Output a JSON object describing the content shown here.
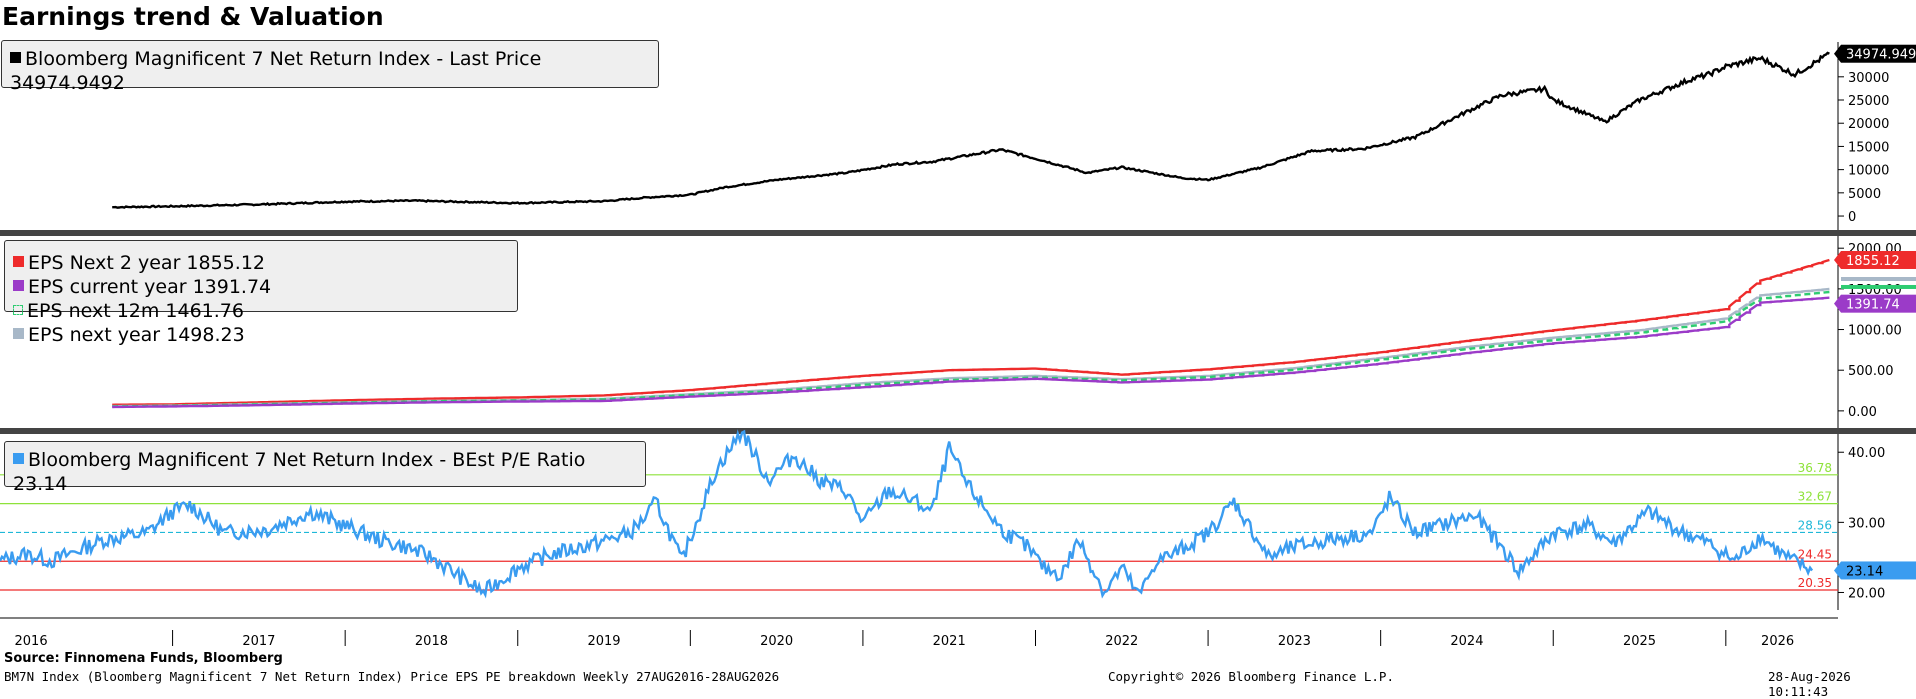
{
  "page": {
    "title": "Earnings trend & Valuation",
    "source": "Source: Finnomena Funds, Bloomberg",
    "footer_left": "BM7N Index (Bloomberg Magnificent 7 Net Return Index) Price EPS PE breakdown Weekly 27AUG2016-28AUG2026",
    "footer_center": "Copyright© 2026 Bloomberg Finance L.P.",
    "footer_right": "28-Aug-2026 10:11:43"
  },
  "colors": {
    "price": "#000000",
    "eps_2y": "#ee2b2b",
    "eps_12m": "#2ecc71",
    "eps_cur": "#9b3bc8",
    "eps_next": "#a8b8c8",
    "pe": "#3a9cf0",
    "ref_green": "#8ee23a",
    "ref_cyan": "#1fb8d8",
    "ref_red": "#ee2b2b"
  },
  "legends": {
    "price": "Bloomberg Magnificent 7 Net Return Index - Last Price 34974.9492",
    "eps_2y": "EPS Next 2 year  1855.12",
    "eps_cur": "EPS current year 1391.74",
    "eps_12m": "EPS next 12m  1461.76",
    "eps_next": "EPS next year  1498.23",
    "pe": "Bloomberg Magnificent 7 Net Return Index - BEst P/E Ratio 23.14"
  },
  "chart_data": [
    {
      "type": "line",
      "title": "Bloomberg Magnificent 7 Net Return Index - Last Price 34974.9492",
      "ylim": [
        -1500,
        37500
      ],
      "yticks": [
        "0",
        "5000",
        "10000",
        "15000",
        "20000",
        "25000",
        "30000"
      ],
      "last_value_label": "34974.9492",
      "x": [
        2016.65,
        2017.0,
        2017.5,
        2018.0,
        2018.4,
        2018.75,
        2019.0,
        2019.5,
        2019.75,
        2020.0,
        2020.2,
        2020.5,
        2020.9,
        2021.2,
        2021.4,
        2021.8,
        2022.0,
        2022.3,
        2022.5,
        2022.85,
        2023.0,
        2023.3,
        2023.6,
        2023.9,
        2024.2,
        2024.5,
        2024.7,
        2024.95,
        2025.0,
        2025.3,
        2025.5,
        2025.8,
        2025.9,
        2026.0,
        2026.2,
        2026.4,
        2026.6
      ],
      "series": [
        {
          "values": [
            1900,
            2100,
            2500,
            3100,
            3300,
            3000,
            2800,
            3200,
            4000,
            4600,
            6200,
            7800,
            9300,
            11200,
            11700,
            14300,
            12400,
            9300,
            10500,
            8200,
            7800,
            10400,
            14000,
            14500,
            17000,
            22500,
            26000,
            27400,
            25000,
            20300,
            25000,
            29500,
            30500,
            32200,
            34000,
            30500,
            34975
          ]
        }
      ]
    },
    {
      "type": "line",
      "ylim": [
        -100,
        2150
      ],
      "yticks": [
        "0.00",
        "500.00",
        "1000.00",
        "1500.00",
        "2000.00"
      ],
      "last_value_labels": [
        "1855.12",
        "1391.74"
      ],
      "x": [
        2016.65,
        2017.0,
        2017.5,
        2018.0,
        2018.5,
        2019.0,
        2019.5,
        2020.0,
        2020.5,
        2021.0,
        2021.5,
        2022.0,
        2022.5,
        2023.0,
        2023.5,
        2024.0,
        2024.5,
        2025.0,
        2025.5,
        2026.0,
        2026.2,
        2026.6
      ],
      "series": [
        {
          "name": "EPS Next 2 year",
          "values": [
            75,
            80,
            105,
            130,
            150,
            165,
            190,
            255,
            345,
            430,
            500,
            520,
            445,
            510,
            600,
            720,
            860,
            990,
            1110,
            1250,
            1600,
            1855.12
          ]
        },
        {
          "name": "EPS next 12m",
          "values": [
            55,
            62,
            80,
            100,
            118,
            128,
            140,
            195,
            245,
            320,
            380,
            410,
            375,
            415,
            505,
            630,
            760,
            870,
            960,
            1100,
            1380,
            1461.76
          ]
        },
        {
          "name": "EPS current year",
          "values": [
            48,
            55,
            70,
            90,
            105,
            115,
            122,
            175,
            225,
            290,
            360,
            395,
            350,
            385,
            470,
            580,
            710,
            830,
            910,
            1030,
            1330,
            1391.74
          ]
        },
        {
          "name": "EPS next year",
          "values": [
            58,
            65,
            85,
            105,
            122,
            132,
            148,
            205,
            260,
            340,
            400,
            430,
            390,
            430,
            525,
            650,
            785,
            900,
            990,
            1135,
            1420,
            1498.23
          ]
        }
      ]
    },
    {
      "type": "line",
      "title": "Bloomberg Magnificent 7 Net Return Index - BEst P/E Ratio 23.14",
      "ylim": [
        17.5,
        42.6
      ],
      "yticks": [
        "20.00",
        "30.00",
        "40.00"
      ],
      "reference_lines": [
        {
          "label": "36.78",
          "value": 36.78,
          "color": "green"
        },
        {
          "label": "32.67",
          "value": 32.67,
          "color": "green"
        },
        {
          "label": "28.56",
          "value": 28.56,
          "color": "cyan"
        },
        {
          "label": "24.45",
          "value": 24.45,
          "color": "red"
        },
        {
          "label": "20.35",
          "value": 20.35,
          "color": "red"
        }
      ],
      "last_value_label": "23.14",
      "x": [
        2016.0,
        2016.15,
        2016.3,
        2016.6,
        2016.85,
        2017.0,
        2017.1,
        2017.3,
        2017.55,
        2017.8,
        2018.0,
        2018.2,
        2018.35,
        2018.5,
        2018.8,
        2019.0,
        2019.2,
        2019.45,
        2019.65,
        2019.75,
        2019.8,
        2019.95,
        2020.15,
        2020.3,
        2020.45,
        2020.6,
        2020.75,
        2020.9,
        2021.0,
        2021.15,
        2021.3,
        2021.4,
        2021.5,
        2021.6,
        2021.8,
        2021.95,
        2022.05,
        2022.15,
        2022.25,
        2022.4,
        2022.5,
        2022.6,
        2022.7,
        2022.8,
        2023.0,
        2023.15,
        2023.35,
        2023.5,
        2023.7,
        2023.95,
        2024.05,
        2024.2,
        2024.4,
        2024.55,
        2024.7,
        2024.8,
        2025.0,
        2025.2,
        2025.35,
        2025.55,
        2025.75,
        2025.9,
        2026.05,
        2026.2,
        2026.35,
        2026.5
      ],
      "series": [
        {
          "name": "Bloomberg Magnificent 7 Net Return Index - BEst P/E Ratio",
          "values": [
            24.5,
            25.5,
            24.5,
            27.5,
            28.5,
            31.5,
            32.5,
            28.5,
            29.0,
            31.5,
            29.5,
            27.5,
            26.5,
            25.0,
            20.0,
            23.5,
            25.5,
            27.0,
            28.5,
            31.0,
            33.0,
            24.5,
            37.5,
            43.0,
            36.0,
            39.5,
            36.0,
            34.5,
            30.0,
            34.5,
            33.0,
            31.5,
            40.5,
            35.5,
            29.0,
            26.5,
            23.5,
            22.5,
            27.5,
            20.0,
            23.5,
            19.5,
            24.5,
            25.5,
            28.5,
            33.0,
            25.0,
            26.5,
            27.5,
            28.5,
            33.5,
            28.5,
            30.0,
            31.0,
            26.5,
            23.0,
            28.5,
            29.5,
            27.0,
            31.5,
            28.5,
            27.0,
            24.5,
            28.0,
            25.0,
            23.14
          ]
        }
      ]
    }
  ],
  "x_axis": {
    "xlim": [
      2016.0,
      2026.65
    ],
    "labels": [
      "2016",
      "2017",
      "2018",
      "2019",
      "2020",
      "2021",
      "2022",
      "2023",
      "2024",
      "2025",
      "2026"
    ]
  }
}
